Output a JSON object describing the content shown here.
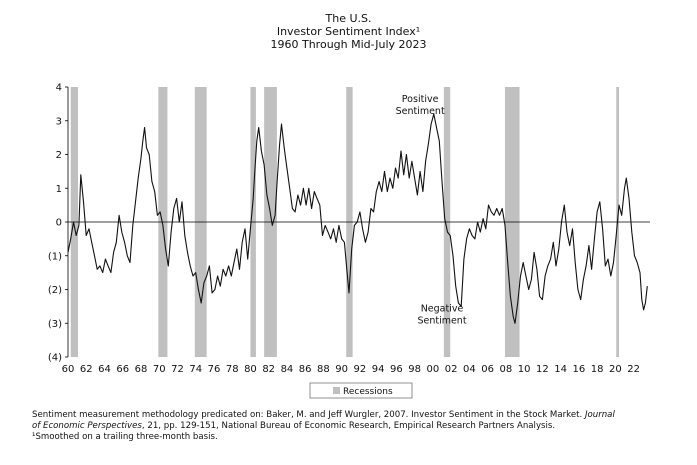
{
  "chart_data": {
    "type": "line",
    "title": "The U.S.",
    "subtitle": "Investor Sentiment Index¹",
    "period": "1960 Through Mid-July 2023",
    "ylim": [
      -4,
      4
    ],
    "yticks": [
      4,
      3,
      2,
      1,
      0,
      -1,
      -2,
      -3,
      -4
    ],
    "ytick_labels": [
      "4",
      "3",
      "2",
      "1",
      "0",
      "(1)",
      "(2)",
      "(3)",
      "(4)"
    ],
    "xlim": [
      1960,
      2023.8
    ],
    "xticks": [
      1960,
      1962,
      1964,
      1966,
      1968,
      1970,
      1972,
      1974,
      1976,
      1978,
      1980,
      1982,
      1984,
      1986,
      1988,
      1990,
      1992,
      1994,
      1996,
      1998,
      2000,
      2002,
      2004,
      2006,
      2008,
      2010,
      2012,
      2014,
      2016,
      2018,
      2020,
      2022
    ],
    "xtick_labels": [
      "60",
      "62",
      "64",
      "66",
      "68",
      "70",
      "72",
      "74",
      "76",
      "78",
      "80",
      "82",
      "84",
      "86",
      "88",
      "90",
      "92",
      "94",
      "96",
      "98",
      "00",
      "02",
      "04",
      "06",
      "08",
      "10",
      "12",
      "14",
      "16",
      "18",
      "20",
      "22"
    ],
    "grid": false,
    "recessions": [
      [
        1960.3,
        1961.1
      ],
      [
        1969.9,
        1970.9
      ],
      [
        1973.9,
        1975.2
      ],
      [
        1980.0,
        1980.6
      ],
      [
        1981.5,
        1982.9
      ],
      [
        1990.5,
        1991.2
      ],
      [
        2001.2,
        2001.9
      ],
      [
        2007.9,
        2009.5
      ],
      [
        2020.1,
        2020.4
      ]
    ],
    "legend": {
      "label": "Recessions",
      "placement": "bottom-center"
    },
    "annotations": [
      {
        "text": "Positive",
        "x": 1998.6,
        "y": 3.55
      },
      {
        "text": "Sentiment",
        "x": 1998.6,
        "y": 3.2
      },
      {
        "text": "Negative",
        "x": 2001.0,
        "y": -2.65
      },
      {
        "text": "Sentiment",
        "x": 2001.0,
        "y": -3.0
      }
    ],
    "series": [
      {
        "name": "Investor Sentiment Index",
        "color": "#111111",
        "points": [
          [
            1960.0,
            -0.9
          ],
          [
            1960.3,
            -0.5
          ],
          [
            1960.6,
            0.0
          ],
          [
            1960.9,
            -0.4
          ],
          [
            1961.2,
            -0.1
          ],
          [
            1961.4,
            1.4
          ],
          [
            1961.7,
            0.6
          ],
          [
            1962.0,
            -0.4
          ],
          [
            1962.3,
            -0.2
          ],
          [
            1962.6,
            -0.6
          ],
          [
            1962.9,
            -1.0
          ],
          [
            1963.2,
            -1.4
          ],
          [
            1963.5,
            -1.3
          ],
          [
            1963.8,
            -1.5
          ],
          [
            1964.1,
            -1.1
          ],
          [
            1964.4,
            -1.3
          ],
          [
            1964.7,
            -1.5
          ],
          [
            1965.0,
            -0.9
          ],
          [
            1965.3,
            -0.6
          ],
          [
            1965.6,
            0.2
          ],
          [
            1965.9,
            -0.3
          ],
          [
            1966.2,
            -0.6
          ],
          [
            1966.5,
            -1.0
          ],
          [
            1966.8,
            -1.2
          ],
          [
            1967.1,
            -0.1
          ],
          [
            1967.4,
            0.6
          ],
          [
            1967.7,
            1.3
          ],
          [
            1968.0,
            1.9
          ],
          [
            1968.2,
            2.4
          ],
          [
            1968.4,
            2.8
          ],
          [
            1968.6,
            2.2
          ],
          [
            1968.9,
            2.0
          ],
          [
            1969.2,
            1.2
          ],
          [
            1969.5,
            0.9
          ],
          [
            1969.8,
            0.2
          ],
          [
            1970.1,
            0.3
          ],
          [
            1970.4,
            -0.1
          ],
          [
            1970.7,
            -0.8
          ],
          [
            1971.0,
            -1.3
          ],
          [
            1971.3,
            -0.3
          ],
          [
            1971.6,
            0.4
          ],
          [
            1971.9,
            0.7
          ],
          [
            1972.2,
            0.0
          ],
          [
            1972.5,
            0.6
          ],
          [
            1972.8,
            -0.4
          ],
          [
            1973.1,
            -0.9
          ],
          [
            1973.4,
            -1.3
          ],
          [
            1973.7,
            -1.6
          ],
          [
            1974.0,
            -1.5
          ],
          [
            1974.3,
            -2.0
          ],
          [
            1974.6,
            -2.4
          ],
          [
            1974.9,
            -1.8
          ],
          [
            1975.2,
            -1.6
          ],
          [
            1975.5,
            -1.3
          ],
          [
            1975.8,
            -2.1
          ],
          [
            1976.1,
            -2.0
          ],
          [
            1976.4,
            -1.6
          ],
          [
            1976.7,
            -1.9
          ],
          [
            1977.0,
            -1.4
          ],
          [
            1977.3,
            -1.6
          ],
          [
            1977.6,
            -1.3
          ],
          [
            1977.9,
            -1.6
          ],
          [
            1978.2,
            -1.2
          ],
          [
            1978.5,
            -0.8
          ],
          [
            1978.8,
            -1.4
          ],
          [
            1979.1,
            -0.6
          ],
          [
            1979.4,
            -0.2
          ],
          [
            1979.7,
            -1.1
          ],
          [
            1980.0,
            -0.2
          ],
          [
            1980.3,
            0.7
          ],
          [
            1980.5,
            1.6
          ],
          [
            1980.7,
            2.4
          ],
          [
            1980.9,
            2.8
          ],
          [
            1981.2,
            2.1
          ],
          [
            1981.5,
            1.7
          ],
          [
            1981.8,
            0.8
          ],
          [
            1982.1,
            0.4
          ],
          [
            1982.4,
            -0.1
          ],
          [
            1982.7,
            0.2
          ],
          [
            1982.9,
            1.1
          ],
          [
            1983.2,
            2.3
          ],
          [
            1983.4,
            2.9
          ],
          [
            1983.7,
            2.2
          ],
          [
            1984.0,
            1.6
          ],
          [
            1984.3,
            1.0
          ],
          [
            1984.6,
            0.4
          ],
          [
            1984.9,
            0.3
          ],
          [
            1985.2,
            0.8
          ],
          [
            1985.5,
            0.5
          ],
          [
            1985.8,
            1.0
          ],
          [
            1986.1,
            0.5
          ],
          [
            1986.4,
            1.0
          ],
          [
            1986.7,
            0.4
          ],
          [
            1987.0,
            0.9
          ],
          [
            1987.3,
            0.7
          ],
          [
            1987.6,
            0.5
          ],
          [
            1987.9,
            -0.4
          ],
          [
            1988.2,
            -0.1
          ],
          [
            1988.5,
            -0.3
          ],
          [
            1988.8,
            -0.5
          ],
          [
            1989.1,
            -0.2
          ],
          [
            1989.4,
            -0.6
          ],
          [
            1989.7,
            -0.1
          ],
          [
            1990.0,
            -0.5
          ],
          [
            1990.3,
            -0.6
          ],
          [
            1990.6,
            -1.5
          ],
          [
            1990.8,
            -2.1
          ],
          [
            1991.1,
            -0.8
          ],
          [
            1991.4,
            -0.1
          ],
          [
            1991.7,
            0.0
          ],
          [
            1992.0,
            0.3
          ],
          [
            1992.3,
            -0.2
          ],
          [
            1992.6,
            -0.6
          ],
          [
            1992.9,
            -0.3
          ],
          [
            1993.2,
            0.4
          ],
          [
            1993.5,
            0.3
          ],
          [
            1993.8,
            0.9
          ],
          [
            1994.1,
            1.2
          ],
          [
            1994.4,
            0.9
          ],
          [
            1994.7,
            1.5
          ],
          [
            1995.0,
            0.9
          ],
          [
            1995.3,
            1.3
          ],
          [
            1995.6,
            1.0
          ],
          [
            1995.9,
            1.6
          ],
          [
            1996.2,
            1.3
          ],
          [
            1996.5,
            2.1
          ],
          [
            1996.8,
            1.4
          ],
          [
            1997.1,
            2.0
          ],
          [
            1997.4,
            1.3
          ],
          [
            1997.7,
            1.8
          ],
          [
            1998.0,
            1.3
          ],
          [
            1998.3,
            0.8
          ],
          [
            1998.6,
            1.5
          ],
          [
            1998.9,
            0.9
          ],
          [
            1999.2,
            1.8
          ],
          [
            1999.5,
            2.3
          ],
          [
            1999.8,
            2.9
          ],
          [
            2000.1,
            3.2
          ],
          [
            2000.4,
            2.8
          ],
          [
            2000.7,
            2.4
          ],
          [
            2001.0,
            1.2
          ],
          [
            2001.3,
            0.1
          ],
          [
            2001.6,
            -0.3
          ],
          [
            2001.9,
            -0.4
          ],
          [
            2002.2,
            -1.0
          ],
          [
            2002.5,
            -1.9
          ],
          [
            2002.8,
            -2.4
          ],
          [
            2003.1,
            -2.5
          ],
          [
            2003.4,
            -1.1
          ],
          [
            2003.7,
            -0.5
          ],
          [
            2004.0,
            -0.2
          ],
          [
            2004.3,
            -0.4
          ],
          [
            2004.6,
            -0.5
          ],
          [
            2004.9,
            0.0
          ],
          [
            2005.2,
            -0.3
          ],
          [
            2005.5,
            0.1
          ],
          [
            2005.8,
            -0.2
          ],
          [
            2006.1,
            0.5
          ],
          [
            2006.4,
            0.3
          ],
          [
            2006.7,
            0.2
          ],
          [
            2007.0,
            0.4
          ],
          [
            2007.3,
            0.2
          ],
          [
            2007.6,
            0.4
          ],
          [
            2007.9,
            -0.1
          ],
          [
            2008.2,
            -1.2
          ],
          [
            2008.5,
            -2.2
          ],
          [
            2008.8,
            -2.8
          ],
          [
            2009.0,
            -3.0
          ],
          [
            2009.3,
            -2.4
          ],
          [
            2009.6,
            -1.6
          ],
          [
            2009.9,
            -1.2
          ],
          [
            2010.2,
            -1.6
          ],
          [
            2010.5,
            -2.0
          ],
          [
            2010.8,
            -1.7
          ],
          [
            2011.1,
            -0.9
          ],
          [
            2011.4,
            -1.4
          ],
          [
            2011.7,
            -2.2
          ],
          [
            2012.0,
            -2.3
          ],
          [
            2012.3,
            -1.6
          ],
          [
            2012.6,
            -1.3
          ],
          [
            2012.9,
            -1.1
          ],
          [
            2013.2,
            -0.6
          ],
          [
            2013.5,
            -1.3
          ],
          [
            2013.8,
            -0.8
          ],
          [
            2014.1,
            0.0
          ],
          [
            2014.4,
            0.5
          ],
          [
            2014.7,
            -0.3
          ],
          [
            2015.0,
            -0.7
          ],
          [
            2015.3,
            -0.2
          ],
          [
            2015.6,
            -1.2
          ],
          [
            2015.9,
            -2.0
          ],
          [
            2016.2,
            -2.3
          ],
          [
            2016.5,
            -1.7
          ],
          [
            2016.8,
            -1.3
          ],
          [
            2017.1,
            -0.7
          ],
          [
            2017.4,
            -1.4
          ],
          [
            2017.7,
            -0.5
          ],
          [
            2018.0,
            0.3
          ],
          [
            2018.3,
            0.6
          ],
          [
            2018.6,
            -0.2
          ],
          [
            2018.9,
            -1.3
          ],
          [
            2019.2,
            -1.1
          ],
          [
            2019.5,
            -1.6
          ],
          [
            2019.8,
            -1.2
          ],
          [
            2020.1,
            -0.4
          ],
          [
            2020.4,
            0.5
          ],
          [
            2020.7,
            0.2
          ],
          [
            2021.0,
            1.0
          ],
          [
            2021.2,
            1.3
          ],
          [
            2021.5,
            0.7
          ],
          [
            2021.8,
            -0.3
          ],
          [
            2022.1,
            -1.0
          ],
          [
            2022.4,
            -1.2
          ],
          [
            2022.7,
            -1.5
          ],
          [
            2022.9,
            -2.3
          ],
          [
            2023.1,
            -2.6
          ],
          [
            2023.3,
            -2.4
          ],
          [
            2023.5,
            -1.9
          ]
        ]
      }
    ]
  },
  "footnotes": {
    "line1_prefix": "Sentiment measurement methodology predicated on: Baker, M. and Jeff Wurgler, 2007. Investor Sentiment in the Stock Market.",
    "line1_journal": "Journal",
    "line2_journal": "of Economic Perspectives",
    "line2_rest": ", 21, pp. 129-151, National Bureau of Economic Research, Empirical Research Partners Analysis.",
    "line3": "¹Smoothed on a trailing three-month basis."
  }
}
